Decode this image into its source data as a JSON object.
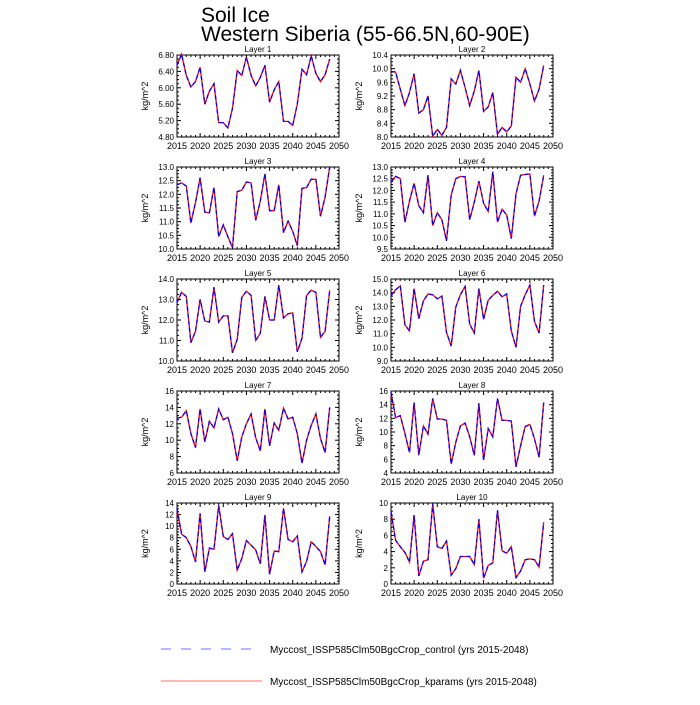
{
  "chart_data": {
    "type": "line",
    "title": "Soil Ice",
    "subtitle": "Western Siberia (55-66.5N,60-90E)",
    "ylabel": "kg/m^2",
    "xlim": [
      2015,
      2050
    ],
    "xticks": [
      2015,
      2020,
      2025,
      2030,
      2035,
      2040,
      2045,
      2050
    ],
    "x_start": 2015,
    "legend": {
      "placement": "bottom",
      "entries": [
        {
          "name": "Myccost_ISSP585Clm50BgcCrop_control (yrs 2015-2048)",
          "color": "#0000ff",
          "style": "dashed"
        },
        {
          "name": "Myccost_ISSP585Clm50BgcCrop_kparams (yrs 2015-2048)",
          "color": "#ff0000",
          "style": "solid"
        }
      ]
    },
    "panels": [
      {
        "title": "Layer 1",
        "ylim": [
          4.8,
          6.8
        ],
        "ystep": 0.4,
        "decimals": 2,
        "values": [
          6.55,
          6.82,
          6.3,
          6.02,
          6.15,
          6.5,
          5.6,
          5.92,
          6.1,
          5.15,
          5.15,
          5.02,
          5.5,
          6.42,
          6.3,
          6.75,
          6.3,
          6.05,
          6.25,
          6.55,
          5.65,
          5.95,
          6.15,
          5.18,
          5.18,
          5.08,
          5.6,
          6.45,
          6.32,
          6.78,
          6.35,
          6.15,
          6.32,
          6.7
        ]
      },
      {
        "title": "Layer 2",
        "ylim": [
          8.0,
          10.4
        ],
        "ystep": 0.4,
        "decimals": 1,
        "values": [
          9.92,
          9.9,
          9.4,
          8.92,
          9.3,
          9.85,
          8.7,
          8.8,
          9.2,
          8.02,
          8.22,
          8.05,
          8.28,
          9.7,
          9.55,
          9.95,
          9.45,
          8.92,
          9.35,
          9.95,
          8.75,
          8.88,
          9.3,
          8.08,
          8.28,
          8.15,
          8.32,
          9.75,
          9.6,
          10.0,
          9.55,
          9.05,
          9.4,
          10.1
        ]
      },
      {
        "title": "Layer 3",
        "ylim": [
          10.0,
          13.0
        ],
        "ystep": 0.5,
        "decimals": 1,
        "values": [
          12.35,
          12.42,
          12.3,
          10.95,
          11.7,
          12.6,
          11.35,
          11.32,
          12.25,
          10.45,
          10.88,
          10.45,
          10.05,
          12.1,
          12.15,
          12.45,
          12.42,
          11.05,
          11.75,
          12.75,
          11.4,
          11.4,
          12.35,
          10.6,
          11.02,
          10.65,
          10.12,
          12.22,
          12.25,
          12.55,
          12.55,
          11.2,
          11.9,
          13.0
        ]
      },
      {
        "title": "Layer 4",
        "ylim": [
          9.5,
          13.0
        ],
        "ystep": 0.5,
        "decimals": 1,
        "values": [
          12.35,
          12.6,
          12.5,
          10.65,
          11.55,
          12.3,
          11.35,
          11.05,
          12.65,
          10.5,
          11.05,
          10.75,
          9.85,
          11.8,
          12.5,
          12.6,
          12.58,
          10.75,
          11.5,
          12.4,
          11.45,
          11.1,
          12.8,
          10.65,
          11.2,
          10.95,
          9.95,
          11.85,
          12.65,
          12.68,
          12.7,
          10.9,
          11.55,
          12.65
        ]
      },
      {
        "title": "Layer 5",
        "ylim": [
          10.0,
          14.0
        ],
        "ystep": 1,
        "decimals": 1,
        "values": [
          12.85,
          13.35,
          13.15,
          10.9,
          11.45,
          13.0,
          11.95,
          11.9,
          13.6,
          11.9,
          12.2,
          12.2,
          10.4,
          11.05,
          13.1,
          13.4,
          13.2,
          11.0,
          11.35,
          13.15,
          12.0,
          12.0,
          13.7,
          12.1,
          12.3,
          12.35,
          10.45,
          11.1,
          13.2,
          13.45,
          13.35,
          11.15,
          11.45,
          13.45
        ]
      },
      {
        "title": "Layer 6",
        "ylim": [
          9.0,
          15.0
        ],
        "ystep": 1,
        "decimals": 1,
        "values": [
          13.8,
          14.2,
          14.5,
          11.65,
          11.2,
          14.3,
          12.1,
          13.4,
          13.9,
          13.85,
          13.55,
          13.75,
          11.1,
          10.1,
          12.95,
          13.85,
          14.45,
          11.7,
          11.05,
          14.3,
          12.05,
          13.45,
          13.8,
          14.1,
          13.7,
          13.9,
          11.2,
          10.0,
          13.0,
          13.85,
          14.55,
          11.9,
          11.05,
          14.55
        ]
      },
      {
        "title": "Layer 7",
        "ylim": [
          6,
          16
        ],
        "ystep": 2,
        "decimals": 0,
        "values": [
          12.7,
          12.8,
          13.6,
          10.8,
          9.1,
          13.8,
          9.8,
          12.3,
          11.5,
          13.8,
          12.5,
          12.8,
          10.8,
          7.5,
          10.4,
          12.0,
          13.2,
          10.3,
          8.7,
          13.8,
          9.3,
          12.1,
          11.2,
          13.9,
          12.6,
          12.8,
          10.8,
          7.2,
          10.0,
          11.8,
          13.2,
          10.2,
          8.5,
          14.0
        ]
      },
      {
        "title": "Layer 8",
        "ylim": [
          4,
          16
        ],
        "ystep": 2,
        "decimals": 0,
        "values": [
          15.8,
          12.1,
          12.4,
          9.8,
          7.0,
          14.3,
          6.6,
          10.9,
          9.7,
          14.9,
          11.9,
          11.9,
          11.7,
          5.3,
          8.5,
          10.9,
          11.3,
          9.3,
          6.6,
          14.2,
          5.9,
          10.5,
          9.3,
          14.9,
          11.7,
          11.7,
          11.6,
          4.9,
          8.0,
          10.8,
          11.1,
          9.0,
          6.3,
          14.3
        ]
      },
      {
        "title": "Layer 9",
        "ylim": [
          0,
          14
        ],
        "ystep": 2,
        "decimals": 0,
        "values": [
          13.0,
          8.6,
          8.0,
          6.5,
          3.8,
          12.2,
          2.1,
          6.2,
          6.0,
          13.6,
          8.2,
          7.7,
          8.7,
          2.4,
          4.4,
          7.5,
          6.7,
          5.9,
          3.5,
          11.9,
          1.7,
          5.7,
          5.6,
          13.1,
          7.7,
          7.3,
          8.3,
          2.1,
          3.9,
          7.3,
          6.5,
          5.6,
          3.3,
          11.7
        ]
      },
      {
        "title": "Layer 10",
        "ylim": [
          0,
          10
        ],
        "ystep": 2,
        "decimals": 0,
        "values": [
          8.9,
          5.4,
          4.6,
          3.9,
          2.7,
          8.5,
          1.0,
          2.8,
          3.0,
          9.9,
          4.6,
          4.4,
          5.3,
          1.1,
          1.9,
          3.4,
          3.4,
          3.4,
          2.4,
          8.0,
          0.7,
          2.3,
          2.6,
          9.1,
          4.1,
          3.8,
          4.6,
          0.8,
          1.6,
          3.0,
          3.1,
          3.0,
          2.1,
          7.6
        ]
      }
    ]
  }
}
